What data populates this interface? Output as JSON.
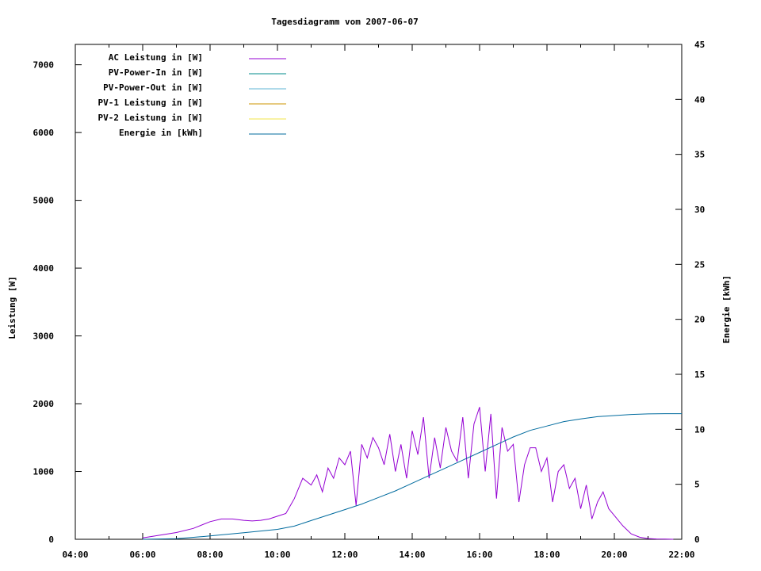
{
  "chart_data": {
    "type": "line",
    "title": "Tagesdiagramm vom 2007-06-07",
    "xlabel": "",
    "ylabel": "Leistung [W]",
    "y2label": "Energie [kWh]",
    "x_ticks": [
      "04:00",
      "06:00",
      "08:00",
      "10:00",
      "12:00",
      "14:00",
      "16:00",
      "18:00",
      "20:00",
      "22:00"
    ],
    "xlim": [
      "04:00",
      "22:00"
    ],
    "ylim": [
      0,
      7300
    ],
    "y_ticks": [
      "0",
      "1000",
      "2000",
      "3000",
      "4000",
      "5000",
      "6000",
      "7000"
    ],
    "y2lim": [
      0,
      45
    ],
    "y2_ticks": [
      "0",
      "5",
      "10",
      "15",
      "20",
      "25",
      "30",
      "35",
      "40",
      "45"
    ],
    "grid": false,
    "legend_position": "top-left",
    "series": [
      {
        "name": "AC Leistung in [W]",
        "color": "#9400d3",
        "axis": "left",
        "x": [
          "06:00",
          "06:30",
          "07:00",
          "07:30",
          "08:00",
          "08:20",
          "08:40",
          "09:00",
          "09:15",
          "09:30",
          "09:45",
          "10:00",
          "10:15",
          "10:30",
          "10:45",
          "11:00",
          "11:10",
          "11:20",
          "11:30",
          "11:40",
          "11:50",
          "12:00",
          "12:10",
          "12:20",
          "12:30",
          "12:40",
          "12:50",
          "13:00",
          "13:10",
          "13:20",
          "13:30",
          "13:40",
          "13:50",
          "14:00",
          "14:10",
          "14:20",
          "14:30",
          "14:40",
          "14:50",
          "15:00",
          "15:10",
          "15:20",
          "15:30",
          "15:40",
          "15:50",
          "16:00",
          "16:10",
          "16:20",
          "16:30",
          "16:40",
          "16:50",
          "17:00",
          "17:10",
          "17:20",
          "17:30",
          "17:40",
          "17:50",
          "18:00",
          "18:10",
          "18:20",
          "18:30",
          "18:40",
          "18:50",
          "19:00",
          "19:10",
          "19:20",
          "19:30",
          "19:40",
          "19:50",
          "20:00",
          "20:15",
          "20:30",
          "20:45",
          "21:00",
          "21:15",
          "21:30",
          "21:45"
        ],
        "values": [
          20,
          60,
          100,
          160,
          260,
          300,
          300,
          280,
          270,
          280,
          300,
          340,
          380,
          600,
          900,
          800,
          950,
          700,
          1050,
          900,
          1200,
          1100,
          1300,
          500,
          1400,
          1200,
          1500,
          1350,
          1100,
          1550,
          1000,
          1400,
          900,
          1600,
          1250,
          1800,
          900,
          1500,
          1050,
          1650,
          1300,
          1150,
          1800,
          900,
          1700,
          1950,
          1000,
          1850,
          600,
          1650,
          1300,
          1400,
          550,
          1100,
          1350,
          1350,
          1000,
          1200,
          550,
          1000,
          1100,
          750,
          900,
          450,
          800,
          300,
          550,
          700,
          450,
          350,
          200,
          80,
          30,
          10,
          5,
          2,
          0
        ]
      },
      {
        "name": "PV-Power-In in [W]",
        "color": "#008b8b",
        "axis": "left",
        "x": [],
        "values": []
      },
      {
        "name": "PV-Power-Out in [W]",
        "color": "#5fb4d6",
        "axis": "left",
        "x": [],
        "values": []
      },
      {
        "name": "PV-1 Leistung in [W]",
        "color": "#cd9500",
        "axis": "left",
        "x": [],
        "values": []
      },
      {
        "name": "PV-2 Leistung in [W]",
        "color": "#f2e44a",
        "axis": "left",
        "x": [],
        "values": []
      },
      {
        "name": "Energie in [kWh]",
        "color": "#006b9e",
        "axis": "right",
        "x": [
          "06:00",
          "07:00",
          "08:00",
          "09:00",
          "10:00",
          "10:30",
          "11:00",
          "11:30",
          "12:00",
          "12:30",
          "13:00",
          "13:30",
          "14:00",
          "14:30",
          "15:00",
          "15:30",
          "16:00",
          "16:30",
          "17:00",
          "17:30",
          "18:00",
          "18:30",
          "19:00",
          "19:30",
          "20:00",
          "20:30",
          "21:00",
          "21:30",
          "22:00"
        ],
        "values": [
          0,
          0.05,
          0.3,
          0.6,
          0.9,
          1.2,
          1.7,
          2.2,
          2.7,
          3.2,
          3.8,
          4.4,
          5.1,
          5.8,
          6.5,
          7.2,
          7.9,
          8.6,
          9.3,
          9.9,
          10.3,
          10.7,
          10.95,
          11.15,
          11.25,
          11.35,
          11.4,
          11.42,
          11.42
        ]
      }
    ]
  }
}
